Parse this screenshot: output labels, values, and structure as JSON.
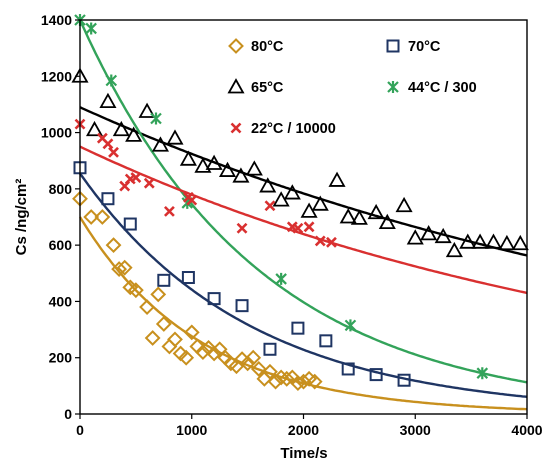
{
  "chart_data": {
    "type": "scatter",
    "xlabel": "Time/s",
    "ylabel": "Cs /ng/cm²",
    "xlim": [
      0,
      4000
    ],
    "ylim": [
      0,
      1400
    ],
    "xticks": [
      0,
      1000,
      2000,
      3000,
      4000
    ],
    "yticks": [
      0,
      200,
      400,
      600,
      800,
      1000,
      1200,
      1400
    ],
    "grid": false,
    "legend": "top-right, inside plot",
    "series": [
      {
        "name": "80°C",
        "marker": "diamond",
        "color": "#C8901E",
        "fit": {
          "a": 700,
          "b": 0.00093
        },
        "x": [
          0,
          100,
          200,
          300,
          350,
          400,
          450,
          500,
          600,
          650,
          700,
          750,
          800,
          850,
          900,
          950,
          1000,
          1050,
          1100,
          1150,
          1200,
          1250,
          1300,
          1350,
          1400,
          1450,
          1500,
          1550,
          1600,
          1650,
          1700,
          1750,
          1800,
          1850,
          1900,
          1950,
          2000,
          2050,
          2100
        ],
        "y": [
          765,
          700,
          700,
          600,
          515,
          520,
          450,
          440,
          380,
          270,
          425,
          320,
          240,
          265,
          215,
          200,
          290,
          240,
          220,
          235,
          215,
          230,
          200,
          180,
          170,
          195,
          180,
          200,
          160,
          125,
          150,
          115,
          130,
          125,
          130,
          110,
          115,
          125,
          115
        ]
      },
      {
        "name": "70°C",
        "marker": "square",
        "color": "#1F3563",
        "fit": {
          "a": 855,
          "b": 0.00066
        },
        "x": [
          0,
          250,
          450,
          750,
          970,
          1200,
          1450,
          1700,
          1950,
          2200,
          2400,
          2650,
          2900
        ],
        "y": [
          875,
          765,
          675,
          475,
          485,
          410,
          385,
          230,
          305,
          260,
          160,
          140,
          120
        ]
      },
      {
        "name": "65°C",
        "marker": "triangle",
        "color": "#000000",
        "fit": {
          "a": 1090,
          "b": 0.000165
        },
        "x": [
          0,
          130,
          250,
          370,
          480,
          600,
          720,
          850,
          970,
          1100,
          1200,
          1320,
          1440,
          1560,
          1680,
          1800,
          1900,
          2050,
          2150,
          2300,
          2400,
          2500,
          2650,
          2750,
          2900,
          3000,
          3120,
          3250,
          3350,
          3470,
          3580,
          3700,
          3820,
          3940
        ],
        "y": [
          1200,
          1010,
          1110,
          1010,
          990,
          1075,
          955,
          980,
          905,
          880,
          890,
          865,
          845,
          870,
          810,
          760,
          785,
          720,
          745,
          830,
          700,
          695,
          715,
          680,
          740,
          625,
          640,
          630,
          580,
          610,
          610,
          610,
          605,
          605
        ]
      },
      {
        "name": "44°C / 300",
        "marker": "asterisk",
        "color": "#33A35A",
        "fit": {
          "a": 1400,
          "b": 0.00063
        },
        "x": [
          0,
          100,
          280,
          680,
          960,
          1800,
          2420,
          3600
        ],
        "y": [
          1400,
          1370,
          1185,
          1050,
          750,
          480,
          315,
          145
        ]
      },
      {
        "name": "22°C / 10000",
        "marker": "x",
        "color": "#D93030",
        "fit": {
          "a": 950,
          "b": 0.000198
        },
        "x": [
          0,
          200,
          250,
          300,
          400,
          450,
          500,
          620,
          800,
          970,
          1000,
          1450,
          1700,
          1900,
          1950,
          2050,
          2150,
          2250
        ],
        "y": [
          1030,
          980,
          960,
          930,
          810,
          835,
          840,
          820,
          720,
          770,
          760,
          660,
          740,
          665,
          660,
          665,
          615,
          610
        ]
      }
    ]
  }
}
